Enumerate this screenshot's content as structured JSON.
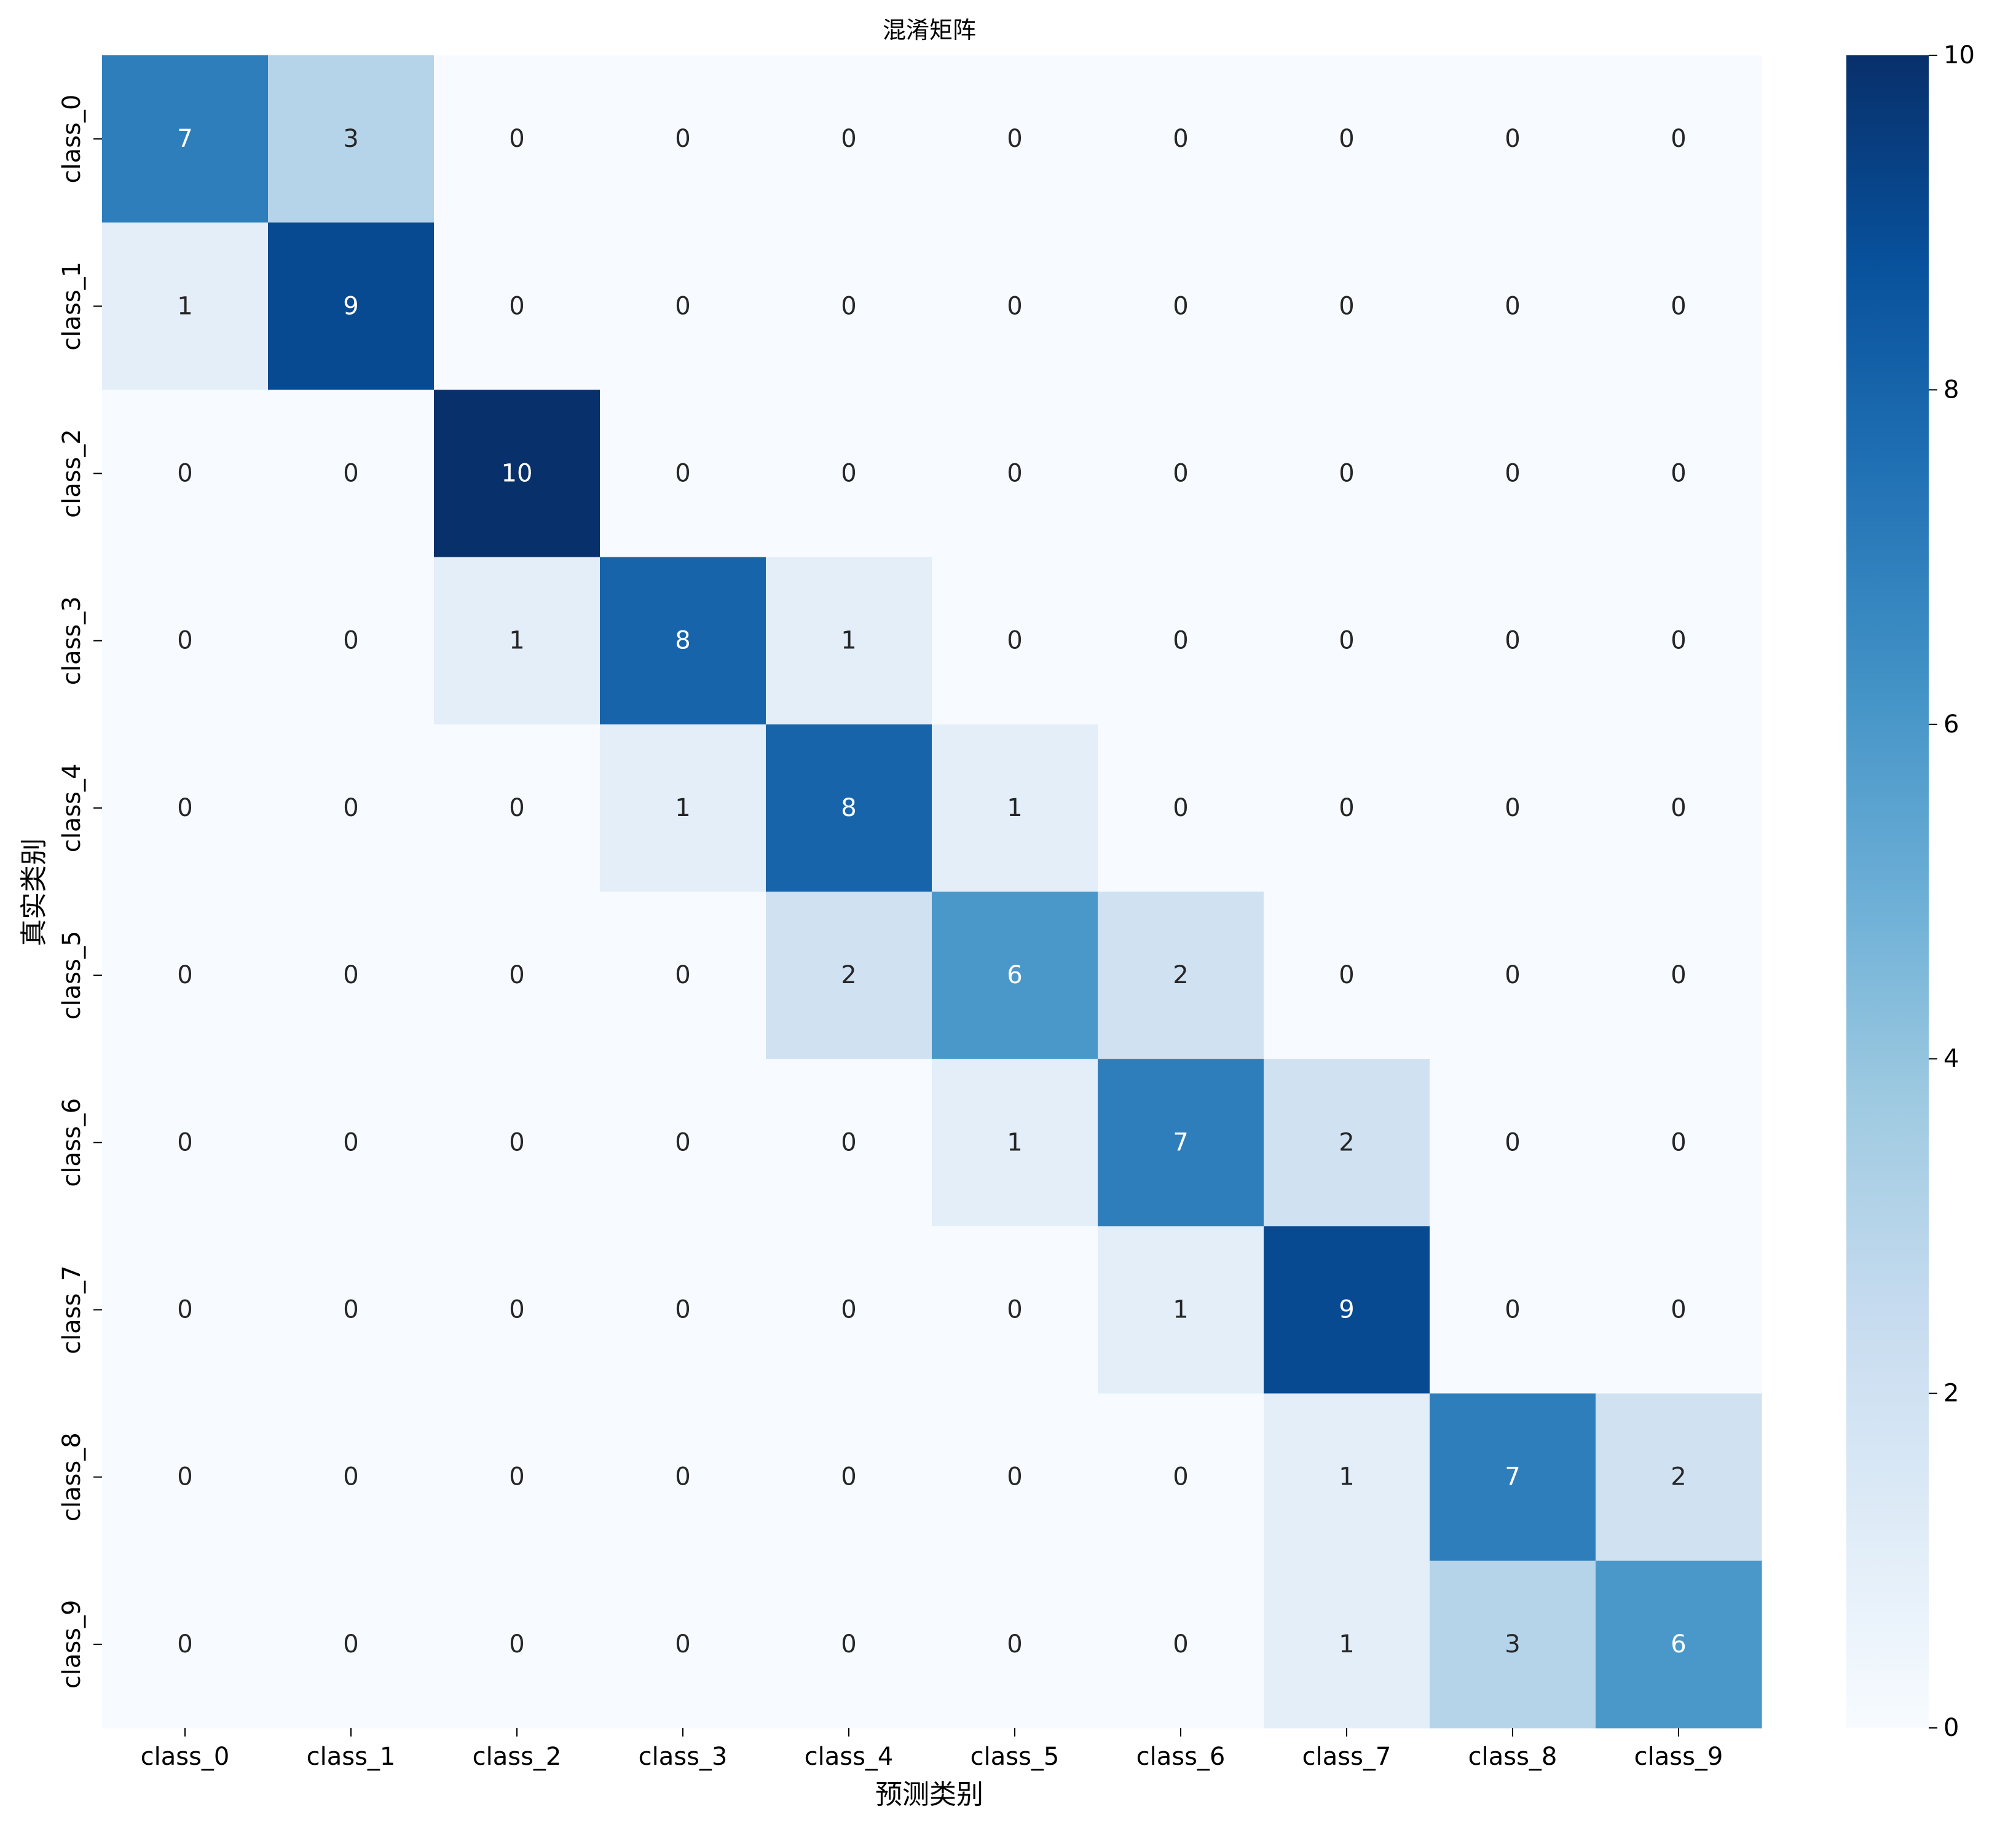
{
  "chart_data": {
    "type": "heatmap",
    "title": "混淆矩阵",
    "xlabel": "预测类别",
    "ylabel": "真实类别",
    "x_categories": [
      "class_0",
      "class_1",
      "class_2",
      "class_3",
      "class_4",
      "class_5",
      "class_6",
      "class_7",
      "class_8",
      "class_9"
    ],
    "y_categories": [
      "class_0",
      "class_1",
      "class_2",
      "class_3",
      "class_4",
      "class_5",
      "class_6",
      "class_7",
      "class_8",
      "class_9"
    ],
    "values": [
      [
        7,
        3,
        0,
        0,
        0,
        0,
        0,
        0,
        0,
        0
      ],
      [
        1,
        9,
        0,
        0,
        0,
        0,
        0,
        0,
        0,
        0
      ],
      [
        0,
        0,
        10,
        0,
        0,
        0,
        0,
        0,
        0,
        0
      ],
      [
        0,
        0,
        1,
        8,
        1,
        0,
        0,
        0,
        0,
        0
      ],
      [
        0,
        0,
        0,
        1,
        8,
        1,
        0,
        0,
        0,
        0
      ],
      [
        0,
        0,
        0,
        0,
        2,
        6,
        2,
        0,
        0,
        0
      ],
      [
        0,
        0,
        0,
        0,
        0,
        1,
        7,
        2,
        0,
        0
      ],
      [
        0,
        0,
        0,
        0,
        0,
        0,
        1,
        9,
        0,
        0
      ],
      [
        0,
        0,
        0,
        0,
        0,
        0,
        0,
        1,
        7,
        2
      ],
      [
        0,
        0,
        0,
        0,
        0,
        0,
        0,
        1,
        3,
        6
      ]
    ],
    "colorbar": {
      "range": [
        0,
        10
      ],
      "ticks": [
        0,
        2,
        4,
        6,
        8,
        10
      ],
      "colormap": "Blues"
    },
    "colors": {
      "low": "#f7fbff",
      "high": "#08306b"
    }
  }
}
